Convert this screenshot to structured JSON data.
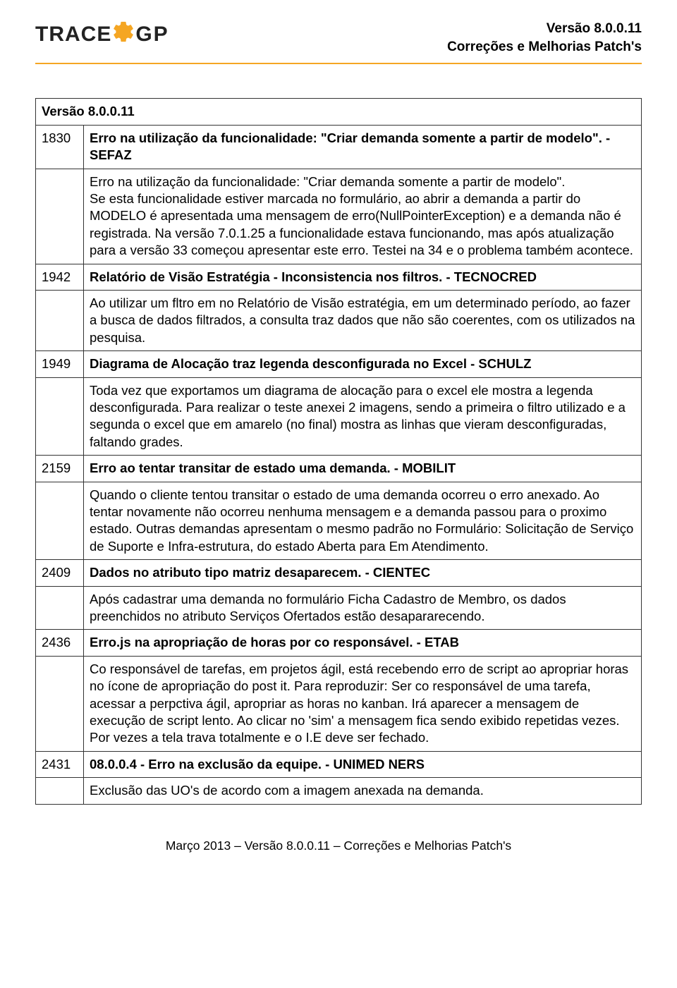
{
  "header": {
    "logo_trace": "TRACE",
    "logo_gp": "GP",
    "version_line": "Versão 8.0.0.11",
    "subtitle_line": "Correções e Melhorias Patch's"
  },
  "table": {
    "version_label": "Versão 8.0.0.11",
    "rows": [
      {
        "id": "1830",
        "title": "Erro na utilização da funcionalidade: \"Criar demanda somente a partir de modelo\". - SEFAZ",
        "desc": "Erro na utilização da funcionalidade: \"Criar demanda somente a partir de modelo\".\nSe esta funcionalidade estiver marcada no formulário, ao abrir a demanda a partir do MODELO é apresentada uma mensagem de erro(NullPointerException) e a demanda não é registrada. Na versão 7.0.1.25 a funcionalidade estava funcionando, mas após atualização para a versão 33 começou apresentar este erro. Testei na 34 e o problema também acontece."
      },
      {
        "id": "1942",
        "title": "Relatório de Visão Estratégia - Inconsistencia nos filtros. - TECNOCRED",
        "desc": "Ao utilizar um fltro em no Relatório de Visão estratégia, em um determinado período, ao fazer a busca de dados filtrados,  a consulta traz dados que não são coerentes, com os utilizados na pesquisa."
      },
      {
        "id": "1949",
        "title": "Diagrama de Alocação traz legenda desconfigurada no Excel - SCHULZ",
        "desc": "Toda vez que exportamos um diagrama de alocação para o excel ele mostra a legenda desconfigurada. Para realizar o teste anexei 2 imagens, sendo a primeira o filtro utilizado e a segunda o excel que em amarelo (no final) mostra as linhas que vieram desconfiguradas, faltando grades."
      },
      {
        "id": "2159",
        "title": "Erro ao tentar transitar de estado uma demanda. - MOBILIT",
        "desc": "Quando o cliente tentou transitar o estado de uma demanda ocorreu o erro anexado. Ao tentar novamente não ocorreu nenhuma mensagem e a demanda passou para o proximo estado. Outras demandas apresentam o mesmo padrão no Formulário: Solicitação de Serviço de Suporte e Infra-estrutura, do estado Aberta para Em Atendimento."
      },
      {
        "id": "2409",
        "title": "Dados no atributo tipo matriz desaparecem. - CIENTEC",
        "desc": "Após cadastrar uma demanda no formulário Ficha Cadastro de Membro, os dados preenchidos no atributo Serviços Ofertados estão desapararecendo."
      },
      {
        "id": "2436",
        "title": "Erro.js na apropriação de horas por co responsável. - ETAB",
        "desc": "Co responsável de tarefas, em projetos ágil, está recebendo erro de script ao apropriar horas no ícone de apropriação do post it. Para reproduzir: Ser co responsável de uma tarefa, acessar a perpctiva ágil, apropriar as horas no kanban. Irá aparecer a mensagem de execução de script lento. Ao clicar no 'sim' a mensagem fica sendo exibido repetidas vezes. Por vezes a tela trava totalmente e o I.E deve ser fechado."
      },
      {
        "id": "2431",
        "title": "08.0.0.4 - Erro na exclusão da equipe. - UNIMED NERS",
        "desc": "Exclusão das UO's de acordo com a imagem anexada na demanda."
      }
    ]
  },
  "footer": "Março 2013 – Versão 8.0.0.11 – Correções e Melhorias Patch's",
  "colors": {
    "accent": "#f5a623",
    "text": "#000000",
    "border": "#333333",
    "background": "#ffffff"
  }
}
